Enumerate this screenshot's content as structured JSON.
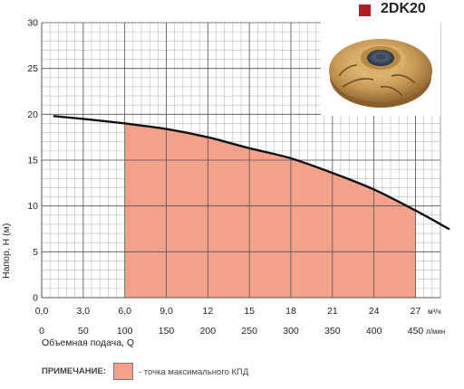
{
  "header": {
    "model": "2DK20",
    "marker_color": "#b01c24"
  },
  "chart_data": {
    "type": "line",
    "title": "2DK20",
    "ylabel": "Напор, Н (м)",
    "xlabel": "Объемная подача, Q",
    "x_unit_top": "м³/ч",
    "x_unit_bottom": "л/мин",
    "x_ticks_top": [
      "0,0",
      "3,0",
      "6,0",
      "9,0",
      "12",
      "15",
      "18",
      "21",
      "24",
      "27"
    ],
    "x_ticks_bottom": [
      "0",
      "50",
      "100",
      "150",
      "200",
      "250",
      "300",
      "350",
      "400",
      "450"
    ],
    "y_ticks": [
      "0",
      "5",
      "10",
      "15",
      "20",
      "25",
      "30"
    ],
    "xlim": [
      0,
      480
    ],
    "ylim": [
      0,
      30
    ],
    "grid": true,
    "series": [
      {
        "values_x": [
          15,
          50,
          100,
          150,
          200,
          250,
          300,
          350,
          400,
          450,
          490
        ],
        "values_y": [
          19.8,
          19.5,
          19.0,
          18.4,
          17.5,
          16.3,
          15.2,
          13.6,
          11.8,
          9.5,
          7.5
        ],
        "color": "#111111"
      }
    ],
    "efficiency_band": {
      "x_from": 100,
      "x_to": 450,
      "color": "#f3a18a"
    }
  },
  "legend": {
    "note_label": "ПРИМЕЧАНИЕ:",
    "text": "- точка максимального КПД",
    "swatch_color": "#f3a18a"
  },
  "photo": {
    "icon": "impeller-photo",
    "brass_color": "#c89a55"
  }
}
